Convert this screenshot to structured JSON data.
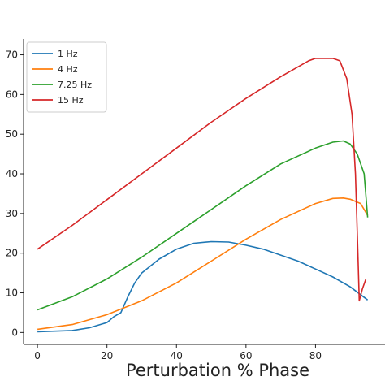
{
  "chart_data": {
    "type": "line",
    "title": "",
    "xlabel": "Perturbation % Phase",
    "ylabel": "",
    "xlim": [
      -4,
      100
    ],
    "ylim": [
      -3,
      74
    ],
    "x_ticks": [
      0,
      20,
      40,
      60,
      80
    ],
    "x_tick_labels": [
      "0",
      "20",
      "40",
      "60",
      "80"
    ],
    "y_ticks": [
      0,
      10,
      20,
      30,
      40,
      50,
      60,
      70
    ],
    "y_tick_labels": [
      "0",
      "10",
      "20",
      "30",
      "40",
      "50",
      "60",
      "70"
    ],
    "grid": false,
    "legend_position": "top-left",
    "series": [
      {
        "name": "1 Hz",
        "color": "#1f77b4",
        "points": [
          [
            0,
            0.2
          ],
          [
            10,
            0.5
          ],
          [
            15,
            1.2
          ],
          [
            20,
            2.5
          ],
          [
            22,
            4
          ],
          [
            24,
            5
          ],
          [
            26,
            9
          ],
          [
            28,
            12.5
          ],
          [
            30,
            15
          ],
          [
            35,
            18.5
          ],
          [
            40,
            21
          ],
          [
            45,
            22.5
          ],
          [
            50,
            22.9
          ],
          [
            55,
            22.8
          ],
          [
            60,
            22
          ],
          [
            65,
            21
          ],
          [
            70,
            19.5
          ],
          [
            75,
            18
          ],
          [
            80,
            16
          ],
          [
            85,
            14
          ],
          [
            90,
            11.5
          ],
          [
            95,
            8.2
          ]
        ]
      },
      {
        "name": "4 Hz",
        "color": "#ff7f0e",
        "points": [
          [
            0,
            0.8
          ],
          [
            10,
            2
          ],
          [
            20,
            4.5
          ],
          [
            30,
            8
          ],
          [
            40,
            12.5
          ],
          [
            50,
            18
          ],
          [
            60,
            23.5
          ],
          [
            70,
            28.5
          ],
          [
            80,
            32.5
          ],
          [
            85,
            33.8
          ],
          [
            88,
            33.9
          ],
          [
            90,
            33.6
          ],
          [
            93,
            32.5
          ],
          [
            95,
            29.5
          ]
        ]
      },
      {
        "name": "7.25 Hz",
        "color": "#2ca02c",
        "points": [
          [
            0,
            5.7
          ],
          [
            10,
            9
          ],
          [
            20,
            13.5
          ],
          [
            30,
            19
          ],
          [
            40,
            25
          ],
          [
            50,
            31
          ],
          [
            60,
            37
          ],
          [
            70,
            42.5
          ],
          [
            80,
            46.5
          ],
          [
            85,
            48
          ],
          [
            88,
            48.3
          ],
          [
            90,
            47.5
          ],
          [
            92,
            45
          ],
          [
            94,
            40
          ],
          [
            95,
            29
          ]
        ]
      },
      {
        "name": "15 Hz",
        "color": "#d62728",
        "points": [
          [
            0,
            21
          ],
          [
            10,
            27
          ],
          [
            20,
            33.5
          ],
          [
            30,
            40
          ],
          [
            40,
            46.5
          ],
          [
            50,
            53
          ],
          [
            60,
            59
          ],
          [
            70,
            64.5
          ],
          [
            78,
            68.5
          ],
          [
            80,
            69.1
          ],
          [
            85,
            69.1
          ],
          [
            87,
            68.5
          ],
          [
            89,
            64
          ],
          [
            90.5,
            55
          ],
          [
            91.5,
            40
          ],
          [
            92.2,
            20
          ],
          [
            92.6,
            8
          ],
          [
            93.5,
            11
          ],
          [
            94.5,
            13.5
          ]
        ]
      }
    ]
  }
}
